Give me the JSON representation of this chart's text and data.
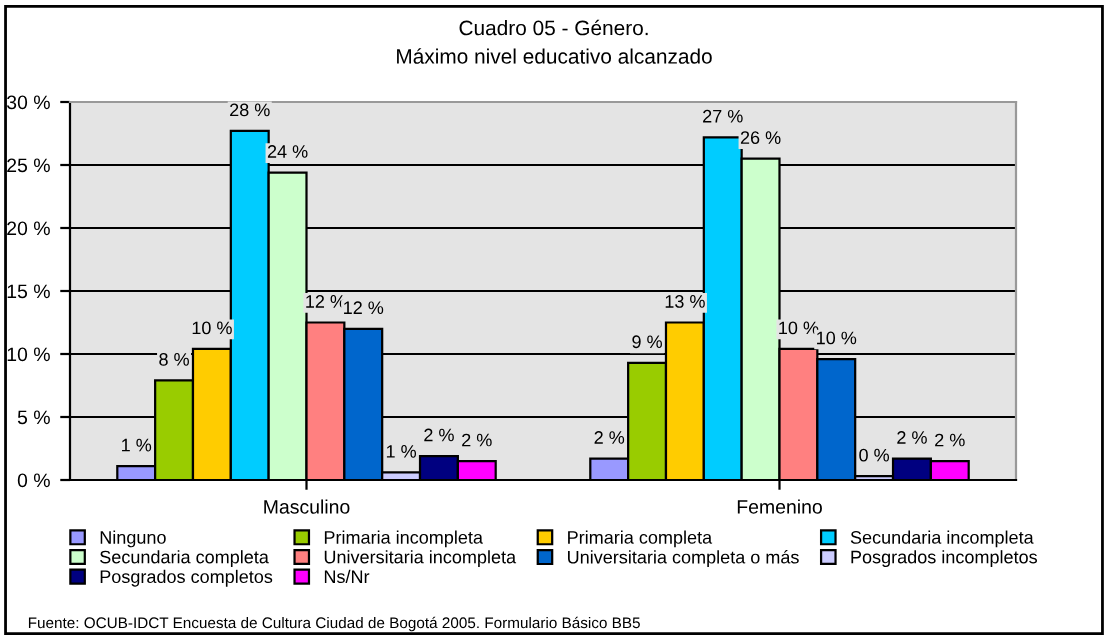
{
  "chart_data": {
    "type": "bar",
    "title": "Cuadro 05 - Género.\nMáximo nivel educativo alcanzado",
    "categories": [
      "Masculino",
      "Femenino"
    ],
    "series": [
      {
        "name": "Ninguno",
        "color": "#9999ff",
        "values": [
          1.1,
          1.7
        ],
        "value_labels": [
          "1 %",
          "2 %"
        ]
      },
      {
        "name": "Primaria incompleta",
        "color": "#99cc00",
        "values": [
          7.9,
          9.3
        ],
        "value_labels": [
          "8 %",
          "9 %"
        ]
      },
      {
        "name": "Primaria completa",
        "color": "#ffcc00",
        "values": [
          10.4,
          12.5
        ],
        "value_labels": [
          "10 %",
          "13 %"
        ]
      },
      {
        "name": "Secundaria incompleta",
        "color": "#00ccff",
        "values": [
          27.7,
          27.2
        ],
        "value_labels": [
          "28 %",
          "27 %"
        ]
      },
      {
        "name": "Secundaria completa",
        "color": "#ccffcc",
        "values": [
          24.4,
          25.5
        ],
        "value_labels": [
          "24 %",
          "26 %"
        ]
      },
      {
        "name": "Universitaria incompleta",
        "color": "#ff8080",
        "values": [
          12.5,
          10.4
        ],
        "value_labels": [
          "12 %",
          "10 %"
        ]
      },
      {
        "name": "Universitaria completa o más",
        "color": "#0066cc",
        "values": [
          12.0,
          9.6
        ],
        "value_labels": [
          "12 %",
          "10 %"
        ]
      },
      {
        "name": "Posgrados incompletos",
        "color": "#ccccff",
        "values": [
          0.6,
          0.3
        ],
        "value_labels": [
          "1 %",
          "0 %"
        ]
      },
      {
        "name": "Posgrados completos",
        "color": "#000080",
        "values": [
          1.9,
          1.7
        ],
        "value_labels": [
          "2 %",
          "2 %"
        ]
      },
      {
        "name": "Ns/Nr",
        "color": "#ff00ff",
        "values": [
          1.5,
          1.5
        ],
        "value_labels": [
          "2 %",
          "2 %"
        ]
      }
    ],
    "ylim": [
      0,
      30
    ],
    "yticks": [
      {
        "value": 0,
        "label": "0 %"
      },
      {
        "value": 5,
        "label": "5 %"
      },
      {
        "value": 10,
        "label": "10 %"
      },
      {
        "value": 15,
        "label": "15 %"
      },
      {
        "value": 20,
        "label": "20 %"
      },
      {
        "value": 25,
        "label": "25 %"
      },
      {
        "value": 30,
        "label": "30 %"
      }
    ],
    "grid": "y",
    "legend": "bottom",
    "annotations": [
      "Fuente: OCUB-IDCT Encuesta de Cultura Ciudad de Bogotá 2005. Formulario Básico BB5"
    ]
  }
}
